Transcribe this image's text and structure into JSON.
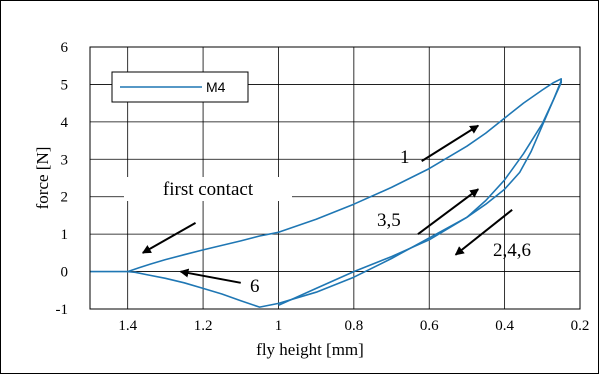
{
  "chart_data": {
    "type": "line",
    "xlabel": "fly height [mm]",
    "ylabel": "force [N]",
    "xlim": [
      1.5,
      0.2
    ],
    "ylim": [
      -1,
      6
    ],
    "x_reversed": true,
    "x_ticks": [
      "1.4",
      "1.2",
      "1",
      "0.8",
      "0.6",
      "0.4",
      "0.2"
    ],
    "x_tick_values": [
      1.4,
      1.2,
      1.0,
      0.8,
      0.6,
      0.4,
      0.2
    ],
    "y_ticks": [
      "-1",
      "0",
      "1",
      "2",
      "3",
      "4",
      "5",
      "6"
    ],
    "y_tick_values": [
      -1,
      0,
      1,
      2,
      3,
      4,
      5,
      6
    ],
    "grid": true,
    "legend_position": "top-left",
    "series": [
      {
        "name": "M4",
        "color": "#1f77b4",
        "x": [
          1.5,
          1.45,
          1.4,
          1.37,
          1.34,
          1.3,
          1.25,
          1.2,
          1.15,
          1.1,
          1.05,
          1.0,
          0.9,
          0.8,
          0.7,
          0.6,
          0.5,
          0.45,
          0.4,
          0.35,
          0.3,
          0.27,
          0.25,
          0.25,
          0.27,
          0.3,
          0.33,
          0.36,
          0.4,
          0.45,
          0.5,
          0.6,
          0.7,
          0.8,
          0.9,
          1.0,
          1.05,
          1.1,
          1.15,
          1.2,
          1.25,
          1.3,
          1.35,
          1.38,
          1.4,
          1.45,
          1.5
        ],
        "y": [
          0.0,
          0.0,
          0.0,
          0.1,
          0.2,
          0.32,
          0.45,
          0.58,
          0.7,
          0.82,
          0.95,
          1.05,
          1.4,
          1.8,
          2.25,
          2.75,
          3.35,
          3.7,
          4.1,
          4.5,
          4.85,
          5.05,
          5.15,
          5.05,
          4.6,
          3.9,
          3.2,
          2.65,
          2.2,
          1.8,
          1.45,
          0.9,
          0.35,
          -0.15,
          -0.55,
          -0.85,
          -0.95,
          -0.78,
          -0.6,
          -0.45,
          -0.3,
          -0.18,
          -0.08,
          -0.02,
          0.0,
          0.0,
          0.0
        ]
      },
      {
        "name": "",
        "color": "#1f77b4",
        "x": [
          1.0,
          0.9,
          0.8,
          0.7,
          0.6,
          0.5,
          0.45,
          0.4,
          0.35,
          0.3,
          0.27,
          0.25
        ],
        "y": [
          -0.9,
          -0.45,
          0.0,
          0.4,
          0.85,
          1.45,
          1.9,
          2.45,
          3.15,
          3.95,
          4.6,
          5.1
        ]
      }
    ],
    "annotations": [
      {
        "text": "first contact",
        "arrow_from": [
          1.22,
          1.3
        ],
        "arrow_to": [
          1.36,
          0.5
        ]
      },
      {
        "text": "6",
        "arrow_from": [
          1.1,
          -0.3
        ],
        "arrow_to": [
          1.26,
          0.0
        ]
      },
      {
        "text": "1",
        "arrow_from": [
          0.62,
          2.95
        ],
        "arrow_to": [
          0.47,
          3.9
        ]
      },
      {
        "text": "3,5",
        "arrow_from": [
          0.63,
          1.0
        ],
        "arrow_to": [
          0.47,
          2.2
        ]
      },
      {
        "text": "2,4,6",
        "arrow_from": [
          0.38,
          1.65
        ],
        "arrow_to": [
          0.53,
          0.45
        ]
      }
    ]
  }
}
